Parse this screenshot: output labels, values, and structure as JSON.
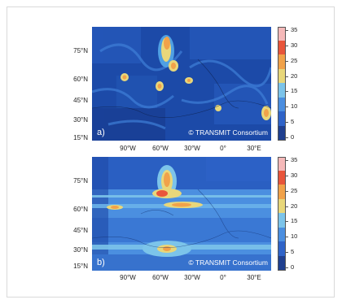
{
  "panels": [
    {
      "id": "a",
      "letter": "a)",
      "credit": "© TRANSMIT Consortium",
      "lat_ticks": [
        "75°N",
        "60°N",
        "45°N",
        "30°N",
        "15°N"
      ],
      "lon_ticks": [],
      "colorbar_ticks": [
        "35",
        "30",
        "25",
        "20",
        "15",
        "10",
        "5",
        "0"
      ]
    },
    {
      "id": "b",
      "letter": "b)",
      "credit": "© TRANSMIT Consortium",
      "lat_ticks": [
        "75°N",
        "60°N",
        "45°N",
        "30°N",
        "15°N"
      ],
      "lon_ticks": [
        "90°W",
        "60°W",
        "30°W",
        "0°",
        "30°E"
      ],
      "colorbar_ticks": [
        "35",
        "30",
        "25",
        "20",
        "15",
        "10",
        "5",
        "0"
      ]
    }
  ],
  "colorbar_colors": [
    "#1f3f8f",
    "#2f63c8",
    "#4a8ee0",
    "#7cc4ea",
    "#e8d77a",
    "#f1a24a",
    "#e8553b",
    "#f5b9b9"
  ]
}
